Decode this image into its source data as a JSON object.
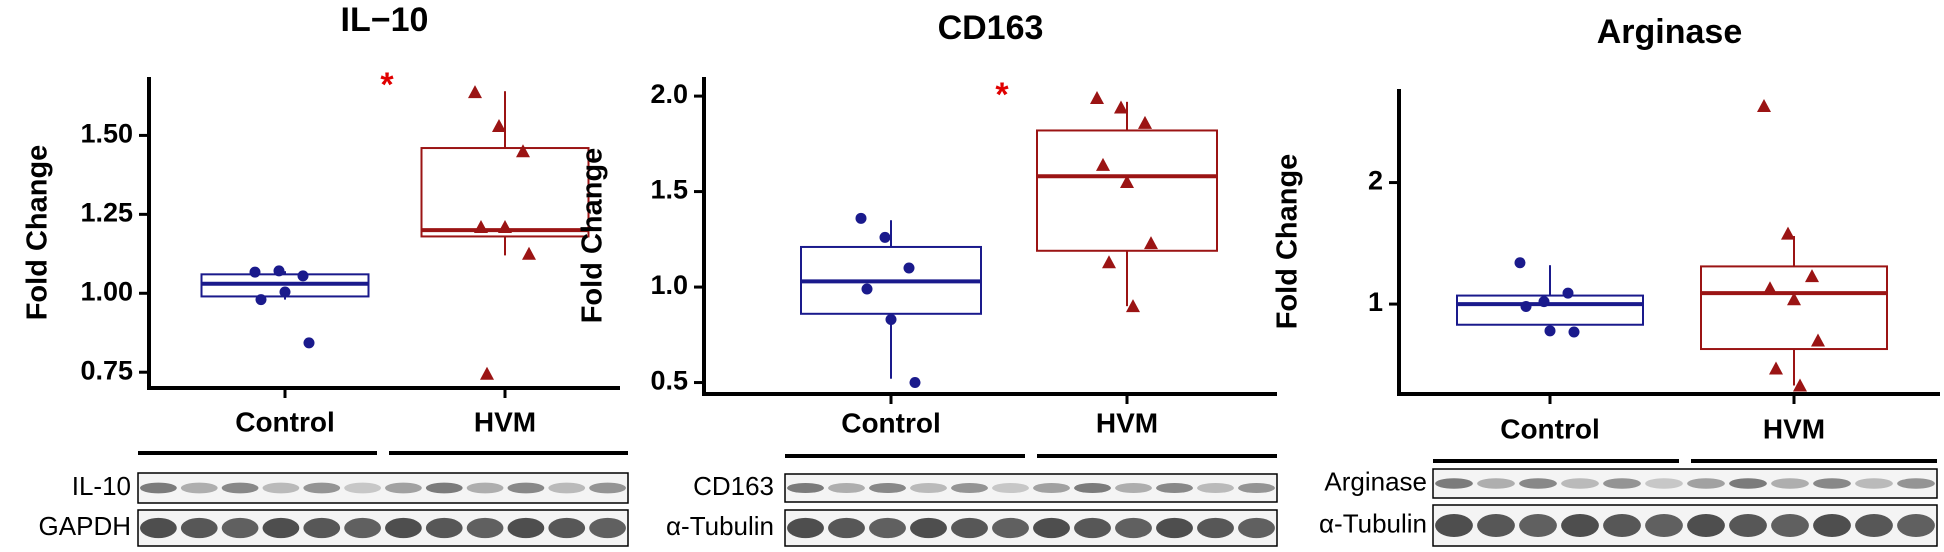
{
  "chart_data": [
    {
      "type": "box",
      "title": "IL−10",
      "y_label": "Fold Change",
      "annotation": "*",
      "annotation_color": "#e00000",
      "categories": [
        "Control",
        "HVM"
      ],
      "ylim": [
        0.7,
        1.685
      ],
      "yticks": [
        0.75,
        {
          "value": 1.0,
          "label": "1.00"
        },
        1.25,
        {
          "value": 1.5,
          "label": "1.50"
        }
      ],
      "series": [
        {
          "name": "Control",
          "color": "#1a1a8c",
          "marker": "circle",
          "values": [
            1.067,
            1.071,
            1.055,
            0.98,
            1.004,
            0.843
          ],
          "box": {
            "whislo": 0.98,
            "q1": 0.99,
            "med": 1.03,
            "q3": 1.06,
            "whishi": 1.07
          }
        },
        {
          "name": "HVM",
          "color": "#9b1414",
          "marker": "triangle",
          "values": [
            1.637,
            1.53,
            1.45,
            1.21,
            1.21,
            1.125,
            0.745
          ],
          "box": {
            "whislo": 1.12,
            "q1": 1.18,
            "med": 1.2,
            "q3": 1.46,
            "whishi": 1.64
          }
        }
      ],
      "blots": [
        "IL-10",
        "GAPDH"
      ]
    },
    {
      "type": "box",
      "title": "CD163",
      "y_label": "Fold Change",
      "annotation": "*",
      "annotation_color": "#e00000",
      "categories": [
        "Control",
        "HVM"
      ],
      "ylim": [
        0.44,
        2.1
      ],
      "yticks": [
        0.5,
        {
          "value": 1.0,
          "label": "1.0"
        },
        1.5,
        {
          "value": 2.0,
          "label": "2.0"
        }
      ],
      "series": [
        {
          "name": "Control",
          "color": "#1a1a8c",
          "marker": "circle",
          "values": [
            1.36,
            1.26,
            1.1,
            0.99,
            0.83,
            0.5
          ],
          "box": {
            "whislo": 0.52,
            "q1": 0.86,
            "med": 1.03,
            "q3": 1.21,
            "whishi": 1.35
          }
        },
        {
          "name": "HVM",
          "color": "#9b1414",
          "marker": "triangle",
          "values": [
            1.99,
            1.94,
            1.86,
            1.64,
            1.55,
            1.23,
            1.13,
            0.9
          ],
          "box": {
            "whislo": 0.9,
            "q1": 1.19,
            "med": 1.58,
            "q3": 1.82,
            "whishi": 1.97
          }
        }
      ],
      "blots": [
        "CD163",
        "α-Tubulin"
      ]
    },
    {
      "type": "box",
      "title": "Arginase",
      "y_label": "Fold Change",
      "categories": [
        "Control",
        "HVM"
      ],
      "ylim": [
        0.26,
        2.77
      ],
      "yticks": [
        1,
        2
      ],
      "series": [
        {
          "name": "Control",
          "color": "#1a1a8c",
          "marker": "circle",
          "values": [
            1.34,
            1.02,
            1.09,
            0.98,
            0.78,
            0.77
          ],
          "box": {
            "whislo": 0.77,
            "q1": 0.83,
            "med": 1.0,
            "q3": 1.07,
            "whishi": 1.32
          }
        },
        {
          "name": "HVM",
          "color": "#9b1414",
          "marker": "triangle",
          "values": [
            2.63,
            1.58,
            1.23,
            1.13,
            1.04,
            0.7,
            0.47,
            0.33
          ],
          "box": {
            "whislo": 0.33,
            "q1": 0.63,
            "med": 1.09,
            "q3": 1.31,
            "whishi": 1.56
          }
        }
      ],
      "blots": [
        "Arginase",
        "α-Tubulin"
      ]
    }
  ]
}
